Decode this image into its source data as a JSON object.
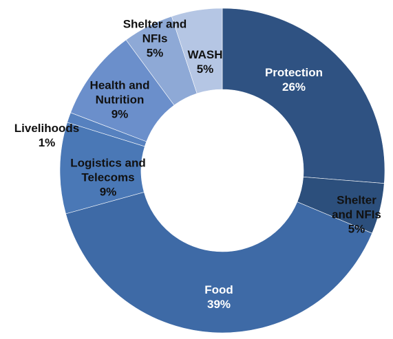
{
  "chart_data": {
    "type": "donut",
    "categories": [
      "Protection",
      "Shelter and NFIs",
      "Food",
      "Logistics and Telecoms",
      "Livelihoods",
      "Health and Nutrition",
      "Shelter and NFIs",
      "WASH"
    ],
    "values": [
      26,
      5,
      39,
      9,
      1,
      9,
      5,
      5
    ],
    "value_labels": [
      "26%",
      "5%",
      "39%",
      "9%",
      "1%",
      "9%",
      "5%",
      "5%"
    ],
    "colors": [
      "#2f5282",
      "#2c4f7c",
      "#3e6aa6",
      "#4a78b6",
      "#5681bf",
      "#6b8fcb",
      "#8ea9d6",
      "#b5c6e4"
    ]
  }
}
